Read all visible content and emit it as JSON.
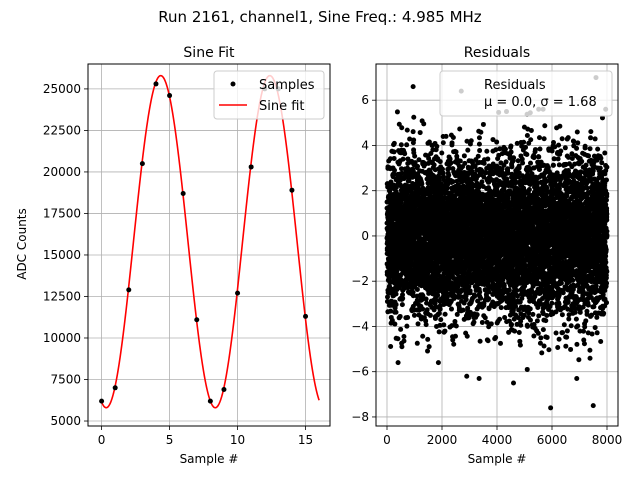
{
  "suptitle": "Run 2161, channel1, Sine Freq.: 4.985 MHz",
  "chart_data": [
    {
      "type": "scatter+line",
      "title": "Sine Fit",
      "xlabel": "Sample #",
      "ylabel": "ADC Counts",
      "xlim": [
        -1.0,
        16.8
      ],
      "ylim": [
        4700,
        26500
      ],
      "xticks": [
        0,
        5,
        10,
        15
      ],
      "yticks": [
        5000,
        7500,
        10000,
        12500,
        15000,
        17500,
        20000,
        22500,
        25000
      ],
      "grid": true,
      "legend": {
        "position": "upper-right",
        "entries": [
          "Samples",
          "Sine fit"
        ]
      },
      "samples": {
        "name": "Samples",
        "x": [
          0,
          1,
          2,
          3,
          4,
          5,
          6,
          7,
          8,
          9,
          10,
          11,
          12,
          13,
          14,
          15
        ],
        "y": [
          6200,
          7000,
          12900,
          20500,
          25300,
          24600,
          18700,
          11100,
          6200,
          6900,
          12700,
          20300,
          25000,
          25000,
          18900,
          11300
        ]
      },
      "fit": {
        "name": "Sine fit",
        "offset": 15800,
        "amplitude": 10000,
        "period_samples": 8.024,
        "peak_at_sample": 4.35,
        "x_range": [
          0,
          16
        ]
      },
      "colors": {
        "samples": "#000000",
        "fit": "#ff0000"
      }
    },
    {
      "type": "scatter",
      "title": "Residuals",
      "xlabel": "Sample #",
      "ylabel": "",
      "xlim": [
        -400,
        8400
      ],
      "ylim": [
        -8.4,
        7.6
      ],
      "xticks": [
        0,
        2000,
        4000,
        6000,
        8000
      ],
      "yticks": [
        -8,
        -6,
        -4,
        -2,
        0,
        2,
        4,
        6
      ],
      "grid": true,
      "legend": {
        "position": "upper-right",
        "entries": [
          "Residuals",
          "μ = 0.0, σ = 1.68"
        ]
      },
      "stats": {
        "mu": 0.0,
        "sigma": 1.68,
        "n_points": 8000
      },
      "outliers": {
        "x": [
          950,
          2700,
          7600,
          7500,
          5950,
          3350,
          4600,
          6900,
          2900,
          5100
        ],
        "y": [
          6.6,
          6.4,
          7.0,
          -7.5,
          -7.6,
          -6.3,
          -6.5,
          -6.3,
          -6.2,
          -5.9
        ]
      },
      "colors": {
        "points": "#000000"
      }
    }
  ]
}
